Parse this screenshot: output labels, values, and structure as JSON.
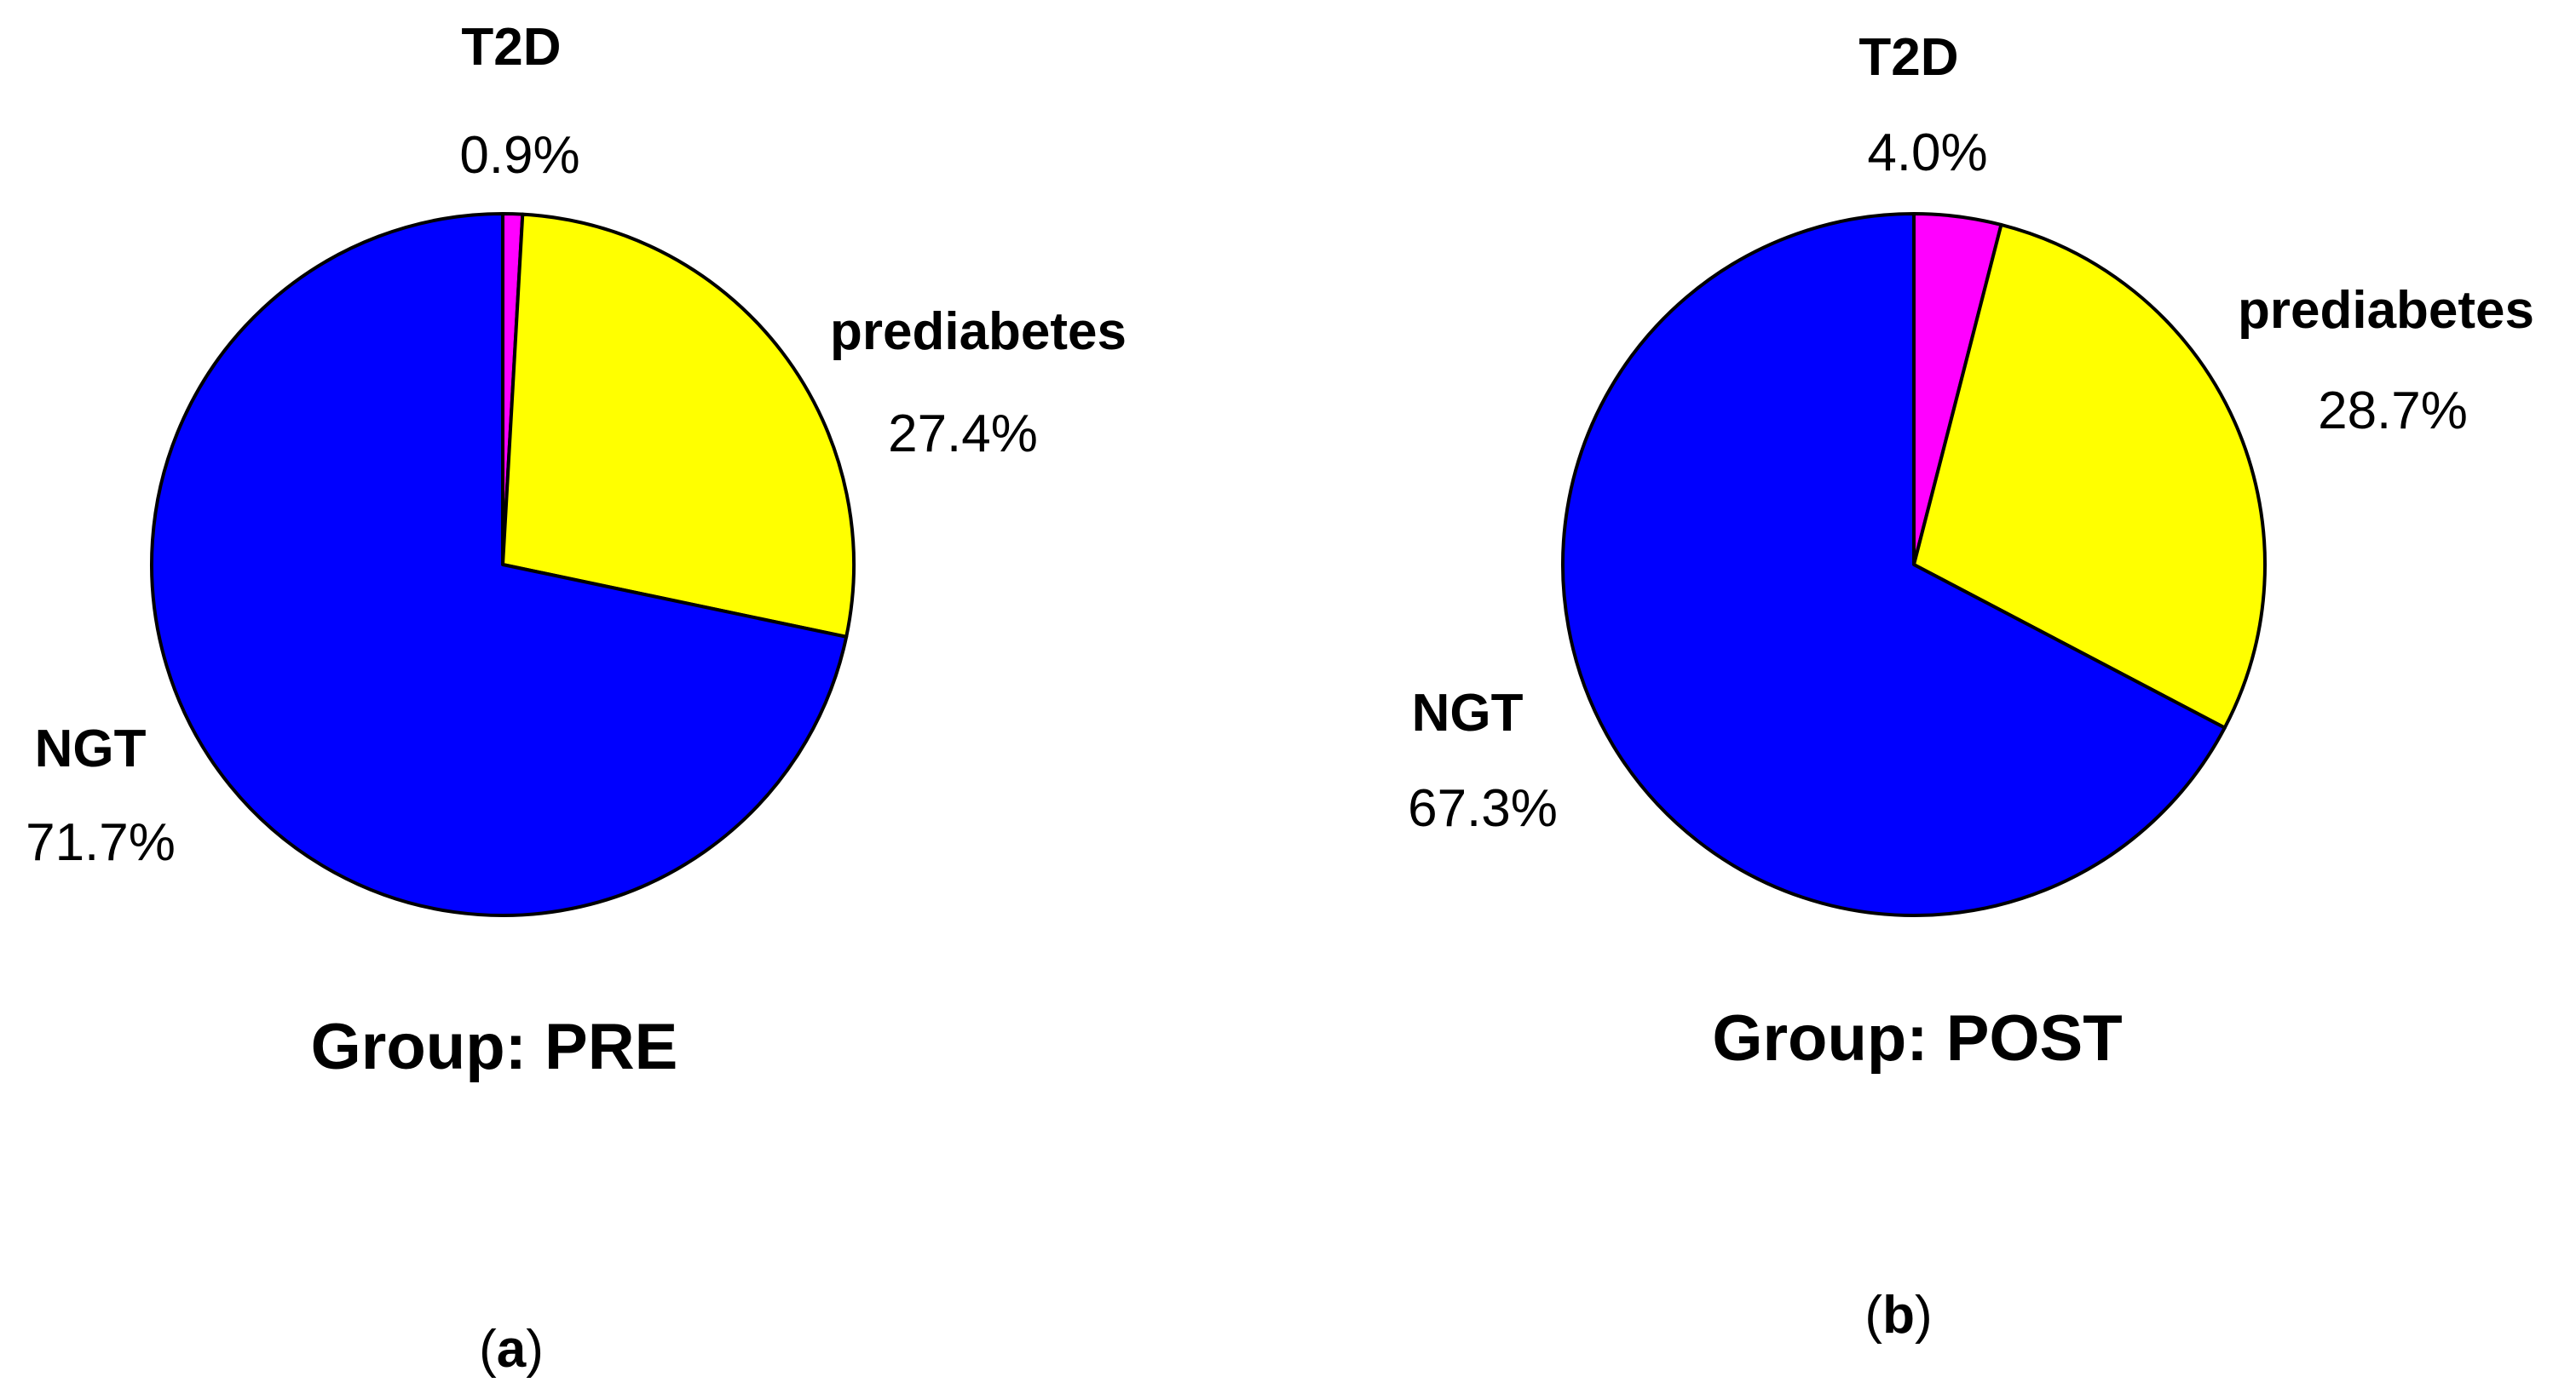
{
  "chart_data": [
    {
      "type": "pie",
      "title": "Group: PRE",
      "panel_letter": "a",
      "slices": [
        {
          "label": "T2D",
          "value": 0.9,
          "value_text": "0.9%",
          "color": "#ff00ff"
        },
        {
          "label": "prediabetes",
          "value": 27.4,
          "value_text": "27.4%",
          "color": "#ffff00"
        },
        {
          "label": "NGT",
          "value": 71.7,
          "value_text": "71.7%",
          "color": "#0000ff"
        }
      ]
    },
    {
      "type": "pie",
      "title": "Group: POST",
      "panel_letter": "b",
      "slices": [
        {
          "label": "T2D",
          "value": 4.0,
          "value_text": "4.0%",
          "color": "#ff00ff"
        },
        {
          "label": "prediabetes",
          "value": 28.7,
          "value_text": "28.7%",
          "color": "#ffff00"
        },
        {
          "label": "NGT",
          "value": 67.3,
          "value_text": "67.3%",
          "color": "#0000ff"
        }
      ]
    }
  ]
}
